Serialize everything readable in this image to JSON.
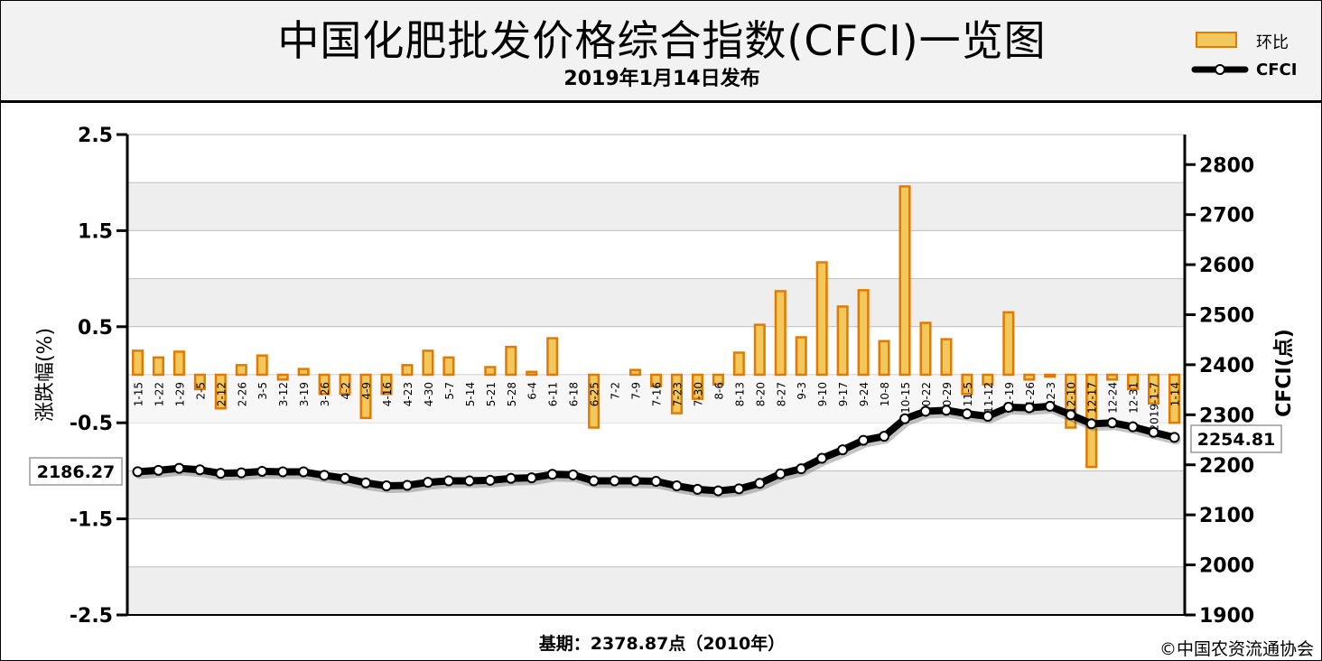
{
  "header": {
    "title": "中国化肥批发价格综合指数(CFCI)一览图",
    "subtitle": "2019年1月14日发布"
  },
  "legend": {
    "items": [
      {
        "label": "环比",
        "kind": "bar"
      },
      {
        "label": "CFCI",
        "kind": "line"
      }
    ]
  },
  "footer": {
    "base_note": "基期：2378.87点（2010年）",
    "copyright": "©中国农资流通协会"
  },
  "colors": {
    "bar_fill": "#f2c75c",
    "bar_edge": "#e07b00",
    "line": "#000000",
    "marker_fill": "#ffffff",
    "band": "#eeeeee",
    "grid": "#999999"
  },
  "chart_data": {
    "type": "bar+line",
    "categories": [
      "1-15",
      "1-22",
      "1-29",
      "2-5",
      "2-12",
      "2-26",
      "3-5",
      "3-12",
      "3-19",
      "3-26",
      "4-2",
      "4-9",
      "4-16",
      "4-23",
      "4-30",
      "5-7",
      "5-14",
      "5-21",
      "5-28",
      "6-4",
      "6-11",
      "6-18",
      "6-25",
      "7-2",
      "7-9",
      "7-16",
      "7-23",
      "7-30",
      "8-6",
      "8-13",
      "8-20",
      "8-27",
      "9-3",
      "9-10",
      "9-17",
      "9-24",
      "10-8",
      "10-15",
      "10-22",
      "10-29",
      "11-5",
      "11-12",
      "11-19",
      "11-26",
      "12-3",
      "12-10",
      "12-17",
      "12-24",
      "12-31",
      "2019-1-7",
      "1-14"
    ],
    "series": [
      {
        "name": "环比",
        "axis": "left",
        "type": "bar",
        "values": [
          0.25,
          0.18,
          0.24,
          -0.15,
          -0.35,
          0.1,
          0.2,
          -0.05,
          0.06,
          -0.2,
          -0.2,
          -0.45,
          -0.2,
          0.1,
          0.25,
          0.18,
          0,
          0.08,
          0.29,
          0.03,
          0.38,
          0,
          -0.55,
          0,
          0.05,
          -0.12,
          -0.4,
          -0.25,
          -0.1,
          0.23,
          0.52,
          0.87,
          0.39,
          1.17,
          0.71,
          0.88,
          0.35,
          1.96,
          0.54,
          0.37,
          -0.2,
          -0.1,
          0.65,
          -0.05,
          -0.02,
          -0.55,
          -0.96,
          -0.05,
          -0.15,
          -0.3,
          -0.5
        ]
      },
      {
        "name": "CFCI",
        "axis": "right",
        "type": "line",
        "values": [
          2186.27,
          2189,
          2193,
          2190,
          2183,
          2184,
          2187,
          2186,
          2186,
          2179,
          2173,
          2164,
          2158,
          2159,
          2165,
          2168,
          2168,
          2169,
          2173,
          2174,
          2181,
          2180,
          2168,
          2168,
          2168,
          2167,
          2158,
          2151,
          2148,
          2152,
          2163,
          2182,
          2192,
          2213,
          2230,
          2249,
          2257,
          2292,
          2307,
          2309,
          2302,
          2297,
          2315,
          2314,
          2317,
          2300,
          2282,
          2284,
          2276,
          2265,
          2254.81
        ]
      }
    ],
    "y_left": {
      "label": "涨跌幅(%)",
      "min": -2.5,
      "max": 2.5,
      "ticks": [
        -2.5,
        -1.5,
        -0.5,
        0.5,
        1.5,
        2.5
      ]
    },
    "y_right": {
      "label": "CFCI(点)",
      "min": 1900,
      "max": 2860,
      "ticks": [
        1900,
        2000,
        2100,
        2200,
        2300,
        2400,
        2500,
        2600,
        2700,
        2800
      ]
    },
    "annotations": [
      {
        "text": "2186.27",
        "series": "CFCI",
        "index": 0
      },
      {
        "text": "2254.81",
        "series": "CFCI",
        "index": 50
      }
    ]
  }
}
